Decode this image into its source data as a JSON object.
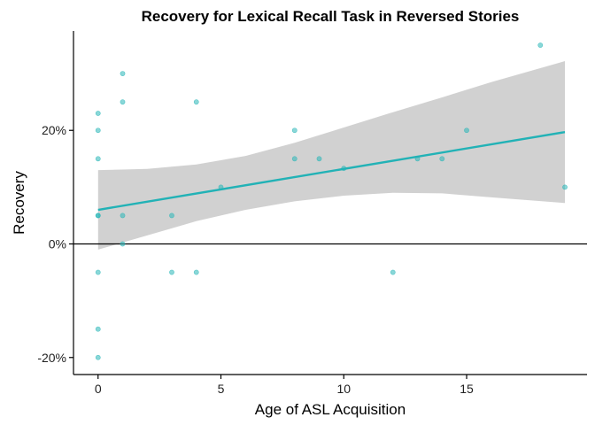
{
  "chart_data": {
    "type": "scatter",
    "title": "Recovery for Lexical Recall Task in Reversed Stories",
    "xlabel": "Age of ASL Acquisition",
    "ylabel": "Recovery",
    "xlim": [
      -1,
      19.9
    ],
    "ylim": [
      -0.23,
      0.375
    ],
    "x_ticks": [
      {
        "value": 0,
        "label": "0"
      },
      {
        "value": 5,
        "label": "5"
      },
      {
        "value": 10,
        "label": "10"
      },
      {
        "value": 15,
        "label": "15"
      }
    ],
    "y_ticks": [
      {
        "value": -0.2,
        "label": "-20%"
      },
      {
        "value": 0,
        "label": "0%"
      },
      {
        "value": 0.2,
        "label": "20%"
      }
    ],
    "reference_line_y": 0,
    "grid": false,
    "legend": "none",
    "colors": {
      "points": "#2ab7b8",
      "fit_line": "#22b2b6",
      "confidence_band": "#bfbfbf"
    },
    "points": [
      {
        "x": 0,
        "y": 0.23
      },
      {
        "x": 0,
        "y": 0.2
      },
      {
        "x": 0,
        "y": 0.15
      },
      {
        "x": 0,
        "y": 0.05
      },
      {
        "x": 0,
        "y": 0.05
      },
      {
        "x": 0,
        "y": -0.05
      },
      {
        "x": 0,
        "y": -0.15
      },
      {
        "x": 0,
        "y": -0.2
      },
      {
        "x": 1,
        "y": 0.3
      },
      {
        "x": 1,
        "y": 0.25
      },
      {
        "x": 1,
        "y": 0.05
      },
      {
        "x": 1,
        "y": 0.0
      },
      {
        "x": 3,
        "y": 0.05
      },
      {
        "x": 3,
        "y": -0.05
      },
      {
        "x": 4,
        "y": 0.25
      },
      {
        "x": 4,
        "y": -0.05
      },
      {
        "x": 5,
        "y": 0.1
      },
      {
        "x": 8,
        "y": 0.2
      },
      {
        "x": 8,
        "y": 0.15
      },
      {
        "x": 9,
        "y": 0.15
      },
      {
        "x": 10,
        "y": 0.133
      },
      {
        "x": 12,
        "y": -0.05
      },
      {
        "x": 13,
        "y": 0.15
      },
      {
        "x": 14,
        "y": 0.15
      },
      {
        "x": 15,
        "y": 0.2
      },
      {
        "x": 18,
        "y": 0.35
      },
      {
        "x": 19,
        "y": 0.1
      }
    ],
    "fit": {
      "x": [
        0,
        19
      ],
      "y": [
        0.06,
        0.197
      ]
    },
    "confidence_band": [
      {
        "x": 0,
        "lower": -0.01,
        "upper": 0.13
      },
      {
        "x": 2,
        "lower": 0.015,
        "upper": 0.132
      },
      {
        "x": 4,
        "lower": 0.04,
        "upper": 0.14
      },
      {
        "x": 6,
        "lower": 0.06,
        "upper": 0.155
      },
      {
        "x": 8,
        "lower": 0.075,
        "upper": 0.178
      },
      {
        "x": 10,
        "lower": 0.085,
        "upper": 0.205
      },
      {
        "x": 12,
        "lower": 0.09,
        "upper": 0.232
      },
      {
        "x": 14,
        "lower": 0.089,
        "upper": 0.258
      },
      {
        "x": 16,
        "lower": 0.082,
        "upper": 0.285
      },
      {
        "x": 19,
        "lower": 0.072,
        "upper": 0.322
      }
    ]
  }
}
